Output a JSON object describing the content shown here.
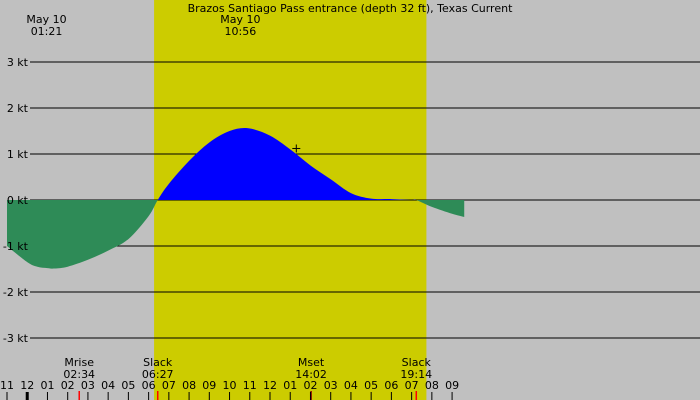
{
  "chart_data": {
    "type": "area",
    "title": "Brazos Santiago Pass entrance (depth 32 ft), Texas Current",
    "ylim": [
      -3.4,
      3.4
    ],
    "y_ticks": [
      {
        "value": 3,
        "label": "3 kt"
      },
      {
        "value": 2,
        "label": "2 kt"
      },
      {
        "value": 1,
        "label": "1 kt"
      },
      {
        "value": 0,
        "label": "0 kt"
      },
      {
        "value": -1,
        "label": "-1 kt"
      },
      {
        "value": -2,
        "label": "-2 kt"
      },
      {
        "value": -3,
        "label": "-3 kt"
      }
    ],
    "x_hour_range": [
      -1,
      33.6
    ],
    "x_ticks": [
      {
        "hour": -1,
        "label": "11"
      },
      {
        "hour": 0,
        "label": "12"
      },
      {
        "hour": 1,
        "label": "01"
      },
      {
        "hour": 2,
        "label": "02"
      },
      {
        "hour": 3,
        "label": "03"
      },
      {
        "hour": 4,
        "label": "04"
      },
      {
        "hour": 5,
        "label": "05"
      },
      {
        "hour": 6,
        "label": "06"
      },
      {
        "hour": 7,
        "label": "07"
      },
      {
        "hour": 8,
        "label": "08"
      },
      {
        "hour": 9,
        "label": "09"
      },
      {
        "hour": 10,
        "label": "10"
      },
      {
        "hour": 11,
        "label": "11"
      },
      {
        "hour": 12,
        "label": "12"
      },
      {
        "hour": 13,
        "label": "01"
      },
      {
        "hour": 14,
        "label": "02"
      },
      {
        "hour": 15,
        "label": "03"
      },
      {
        "hour": 16,
        "label": "04"
      },
      {
        "hour": 17,
        "label": "05"
      },
      {
        "hour": 18,
        "label": "06"
      },
      {
        "hour": 19,
        "label": "07"
      },
      {
        "hour": 20,
        "label": "08"
      },
      {
        "hour": 21,
        "label": "09"
      }
    ],
    "daylight": {
      "start_hour": 6.27,
      "end_hour": 19.73
    },
    "series": [
      {
        "x": [
          -1,
          0,
          0.5,
          1,
          1.35,
          2,
          3,
          4,
          5,
          6,
          6.45,
          7,
          8,
          9,
          10,
          10.93,
          12,
          13,
          14,
          15,
          16,
          17,
          18,
          19,
          19.23,
          20,
          21,
          21.6
        ],
        "values": [
          -1.0,
          -1.35,
          -1.45,
          -1.48,
          -1.49,
          -1.45,
          -1.3,
          -1.1,
          -0.85,
          -0.35,
          0.0,
          0.35,
          0.85,
          1.25,
          1.5,
          1.56,
          1.4,
          1.1,
          0.75,
          0.45,
          0.15,
          0.03,
          0.02,
          0.0,
          0.0,
          -0.15,
          -0.3,
          -0.37
        ],
        "flood_color": "#0000ff",
        "ebb_color": "#2e8b57"
      }
    ],
    "top_events": [
      {
        "hour": 1.35,
        "date": "May 10",
        "time": "01:21"
      },
      {
        "hour": 10.93,
        "date": "May 10",
        "time": "10:56"
      }
    ],
    "bottom_events": [
      {
        "hour": 2.57,
        "label": "Mrise",
        "time": "02:34",
        "tick_color": "#ff0000"
      },
      {
        "hour": 6.45,
        "label": "Slack",
        "time": "06:27",
        "tick_color": "#ff0000"
      },
      {
        "hour": 14.03,
        "label": "Mset",
        "time": "14:02",
        "tick_color": "#8b0000"
      },
      {
        "hour": 19.23,
        "label": "Slack",
        "time": "19:14",
        "tick_color": "#ff0000"
      }
    ],
    "marker": {
      "hour": 13.3,
      "value": 1.12
    },
    "colors": {
      "background": "#c0c0c0",
      "daylight": "#cccc00",
      "flood": "#0000ff",
      "ebb": "#2e8b57",
      "grid": "#000000"
    },
    "grid": true
  }
}
